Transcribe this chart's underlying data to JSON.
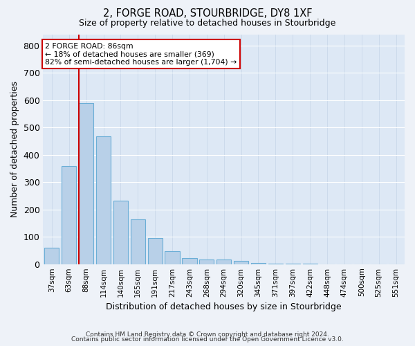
{
  "title": "2, FORGE ROAD, STOURBRIDGE, DY8 1XF",
  "subtitle": "Size of property relative to detached houses in Stourbridge",
  "xlabel": "Distribution of detached houses by size in Stourbridge",
  "ylabel": "Number of detached properties",
  "categories": [
    "37sqm",
    "63sqm",
    "88sqm",
    "114sqm",
    "140sqm",
    "165sqm",
    "191sqm",
    "217sqm",
    "243sqm",
    "268sqm",
    "294sqm",
    "320sqm",
    "345sqm",
    "371sqm",
    "397sqm",
    "422sqm",
    "448sqm",
    "474sqm",
    "500sqm",
    "525sqm",
    "551sqm"
  ],
  "values": [
    60,
    358,
    590,
    468,
    233,
    163,
    95,
    48,
    22,
    18,
    18,
    13,
    5,
    2,
    2,
    1,
    0,
    0,
    0,
    0,
    0
  ],
  "bar_color": "#b8d0e8",
  "bar_edge_color": "#6baed6",
  "marker_color": "#cc0000",
  "ylim": [
    0,
    840
  ],
  "yticks": [
    0,
    100,
    200,
    300,
    400,
    500,
    600,
    700,
    800
  ],
  "annotation_title": "2 FORGE ROAD: 86sqm",
  "annotation_line1": "← 18% of detached houses are smaller (369)",
  "annotation_line2": "82% of semi-detached houses are larger (1,704) →",
  "footer1": "Contains HM Land Registry data © Crown copyright and database right 2024.",
  "footer2": "Contains public sector information licensed under the Open Government Licence v3.0.",
  "bg_color": "#eef2f8",
  "plot_bg_color": "#dde8f5"
}
